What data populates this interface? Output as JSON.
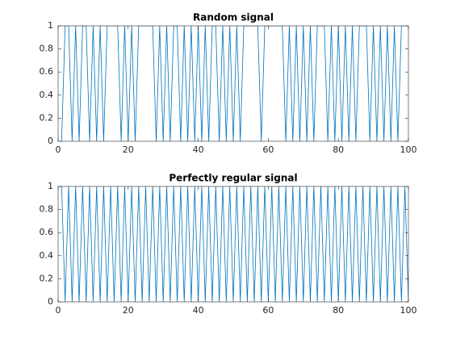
{
  "chart_data": [
    {
      "type": "line",
      "title": "Random signal",
      "color": "#0072bd",
      "x": [
        1,
        2,
        3,
        4,
        5,
        6,
        7,
        8,
        9,
        10,
        11,
        12,
        13,
        14,
        15,
        16,
        17,
        18,
        19,
        20,
        21,
        22,
        23,
        24,
        25,
        26,
        27,
        28,
        29,
        30,
        31,
        32,
        33,
        34,
        35,
        36,
        37,
        38,
        39,
        40,
        41,
        42,
        43,
        44,
        45,
        46,
        47,
        48,
        49,
        50,
        51,
        52,
        53,
        54,
        55,
        56,
        57,
        58,
        59,
        60,
        61,
        62,
        63,
        64,
        65,
        66,
        67,
        68,
        69,
        70,
        71,
        72,
        73,
        74,
        75,
        76,
        77,
        78,
        79,
        80,
        81,
        82,
        83,
        84,
        85,
        86,
        87,
        88,
        89,
        90,
        91,
        92,
        93,
        94,
        95,
        96,
        97,
        98,
        99,
        100
      ],
      "values": [
        0,
        1,
        1,
        0,
        1,
        0,
        1,
        1,
        0,
        1,
        0,
        1,
        0,
        1,
        1,
        1,
        1,
        0,
        1,
        0,
        1,
        0,
        1,
        1,
        1,
        1,
        1,
        0,
        1,
        0,
        1,
        0,
        1,
        1,
        0,
        1,
        0,
        1,
        0,
        1,
        0,
        1,
        0,
        1,
        1,
        0,
        1,
        0,
        1,
        0,
        1,
        0,
        1,
        1,
        1,
        1,
        1,
        0,
        1,
        1,
        1,
        1,
        1,
        1,
        0,
        1,
        0,
        1,
        0,
        1,
        0,
        1,
        0,
        1,
        1,
        1,
        0,
        1,
        0,
        1,
        0,
        1,
        0,
        1,
        0,
        1,
        1,
        1,
        0,
        1,
        0,
        1,
        0,
        1,
        0,
        1,
        0,
        1,
        1,
        1
      ],
      "xlim": [
        0,
        100
      ],
      "xticks": [
        0,
        20,
        40,
        60,
        80,
        100
      ],
      "ylim": [
        0,
        1
      ],
      "yticks": [
        0,
        0.2,
        0.4,
        0.6,
        0.8,
        1
      ]
    },
    {
      "type": "line",
      "title": "Perfectly regular signal",
      "color": "#0072bd",
      "x": [
        1,
        2,
        3,
        4,
        5,
        6,
        7,
        8,
        9,
        10,
        11,
        12,
        13,
        14,
        15,
        16,
        17,
        18,
        19,
        20,
        21,
        22,
        23,
        24,
        25,
        26,
        27,
        28,
        29,
        30,
        31,
        32,
        33,
        34,
        35,
        36,
        37,
        38,
        39,
        40,
        41,
        42,
        43,
        44,
        45,
        46,
        47,
        48,
        49,
        50,
        51,
        52,
        53,
        54,
        55,
        56,
        57,
        58,
        59,
        60,
        61,
        62,
        63,
        64,
        65,
        66,
        67,
        68,
        69,
        70,
        71,
        72,
        73,
        74,
        75,
        76,
        77,
        78,
        79,
        80,
        81,
        82,
        83,
        84,
        85,
        86,
        87,
        88,
        89,
        90,
        91,
        92,
        93,
        94,
        95,
        96,
        97,
        98,
        99,
        100
      ],
      "values": [
        1,
        0,
        1,
        0,
        1,
        0,
        1,
        0,
        1,
        0,
        1,
        0,
        1,
        0,
        1,
        0,
        1,
        0,
        1,
        0,
        1,
        0,
        1,
        0,
        1,
        0,
        1,
        0,
        1,
        0,
        1,
        0,
        1,
        0,
        1,
        0,
        1,
        0,
        1,
        0,
        1,
        0,
        1,
        0,
        1,
        0,
        1,
        0,
        1,
        0,
        1,
        0,
        1,
        0,
        1,
        0,
        1,
        0,
        1,
        0,
        1,
        0,
        1,
        0,
        1,
        0,
        1,
        0,
        1,
        0,
        1,
        0,
        1,
        0,
        1,
        0,
        1,
        0,
        1,
        0,
        1,
        0,
        1,
        0,
        1,
        0,
        1,
        0,
        1,
        0,
        1,
        0,
        1,
        0,
        1,
        0,
        1,
        0,
        1,
        0
      ],
      "xlim": [
        0,
        100
      ],
      "xticks": [
        0,
        20,
        40,
        60,
        80,
        100
      ],
      "ylim": [
        0,
        1
      ],
      "yticks": [
        0,
        0.2,
        0.4,
        0.6,
        0.8,
        1
      ]
    }
  ]
}
